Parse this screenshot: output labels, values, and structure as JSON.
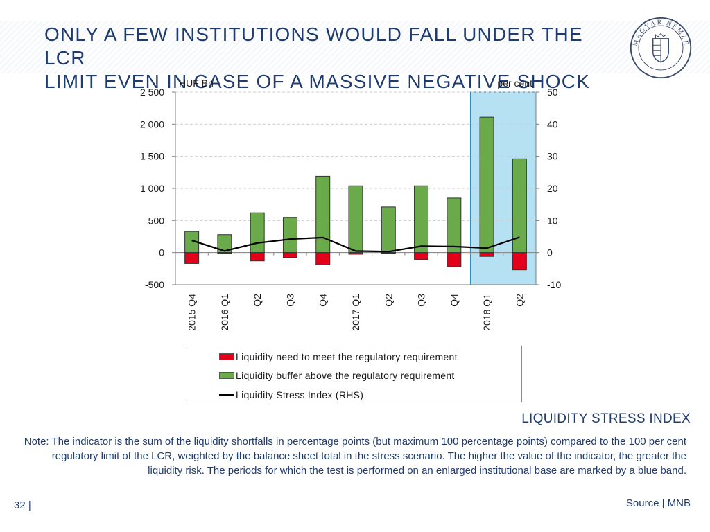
{
  "slide": {
    "title_lines": [
      "ONLY A FEW INSTITUTIONS WOULD FALL UNDER THE LCR",
      "LIMIT EVEN IN CASE OF A MASSIVE NEGATIVE SHOCK"
    ],
    "section_label": "LIQUIDITY STRESS INDEX",
    "note": "Note: The indicator is the sum of the liquidity shortfalls in percentage points (but maximum 100 percentage points) compared to the 100 per cent regulatory limit of the LCR, weighted by the balance sheet total in the stress scenario. The higher the value of the indicator, the greater the liquidity risk. The periods for which the test is performed on an enlarged institutional base are marked by a blue band.",
    "page_number": "32 |",
    "source": "Source | MNB",
    "logo_text": "MAGYAR NEMZETI BANK"
  },
  "colors": {
    "title": "#1f3c70",
    "buffer_bar": "#6aaa4b",
    "need_bar": "#e3001b",
    "line": "#000000",
    "band": "#a9dcf1"
  },
  "chart_data": {
    "type": "bar",
    "left_axis_unit": "HUF Bn",
    "right_axis_unit": "per cent",
    "categories": [
      "2015 Q4",
      "2016 Q1",
      "Q2",
      "Q3",
      "Q4",
      "2017 Q1",
      "Q2",
      "Q3",
      "Q4",
      "2018 Q1",
      "Q2"
    ],
    "ylim_left": [
      -500,
      2500
    ],
    "ylim_right": [
      -10,
      50
    ],
    "yticks_left": [
      -500,
      0,
      500,
      1000,
      1500,
      2000,
      2500
    ],
    "yticks_left_labels": [
      "-500",
      "0",
      "500",
      "1 000",
      "1 500",
      "2 000",
      "2 500"
    ],
    "yticks_right": [
      -10,
      0,
      10,
      20,
      30,
      40,
      50
    ],
    "yticks_right_labels": [
      "-10",
      "0",
      "10",
      "20",
      "30",
      "40",
      "50"
    ],
    "series": [
      {
        "name": "Liquidity need to meet the regulatory requirement",
        "kind": "bar",
        "axis": "left",
        "values": [
          -170,
          -10,
          -130,
          -75,
          -190,
          -25,
          -10,
          -110,
          -220,
          -60,
          -270
        ]
      },
      {
        "name": "Liquidity buffer above the regulatory requirement",
        "kind": "bar",
        "axis": "left",
        "values": [
          330,
          280,
          620,
          550,
          1190,
          1040,
          710,
          1040,
          850,
          2110,
          1460
        ]
      },
      {
        "name": "Liquidity Stress Index (RHS)",
        "kind": "line",
        "axis": "right",
        "values": [
          3.8,
          0.5,
          3.0,
          4.2,
          4.7,
          0.5,
          0.3,
          2.0,
          1.9,
          1.4,
          4.8
        ]
      }
    ],
    "highlight_band_categories": [
      "2018 Q1",
      "Q2"
    ],
    "grid": true
  }
}
